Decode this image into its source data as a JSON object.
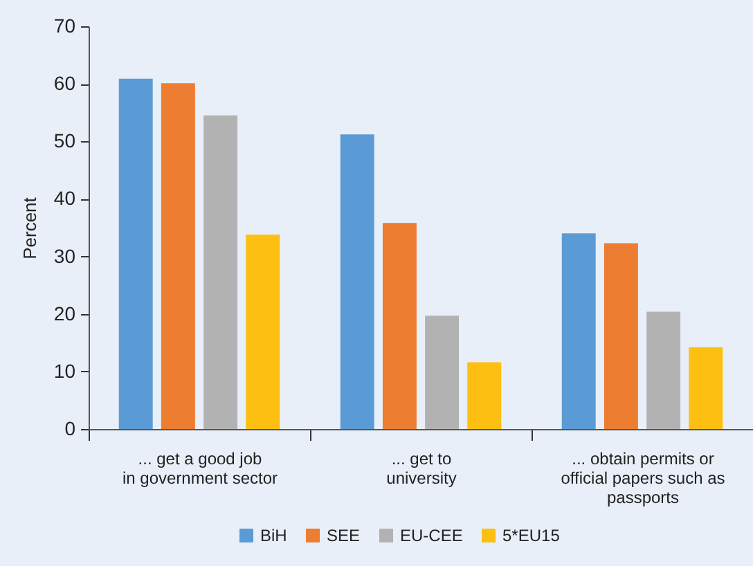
{
  "chart_data": {
    "type": "bar",
    "ylabel": "Percent",
    "categories": [
      "... get a good job\nin government sector",
      "... get to\nuniversity",
      "... obtain permits or\nofficial papers such as\npassports"
    ],
    "series": [
      {
        "name": "BiH",
        "color": "#5b9bd5",
        "values": [
          60.9,
          51.2,
          34.0
        ]
      },
      {
        "name": "SEE",
        "color": "#ed7d31",
        "values": [
          60.1,
          35.8,
          32.3
        ]
      },
      {
        "name": "EU-CEE",
        "color": "#b2b2b2",
        "values": [
          54.5,
          19.7,
          20.4
        ]
      },
      {
        "name": "5*EU15",
        "color": "#fdbf12",
        "values": [
          33.8,
          11.6,
          14.2
        ]
      }
    ],
    "ylim": [
      0,
      70
    ],
    "yticks": [
      0,
      10,
      20,
      30,
      40,
      50,
      60,
      70
    ],
    "grid": false,
    "legend": "bottom"
  }
}
